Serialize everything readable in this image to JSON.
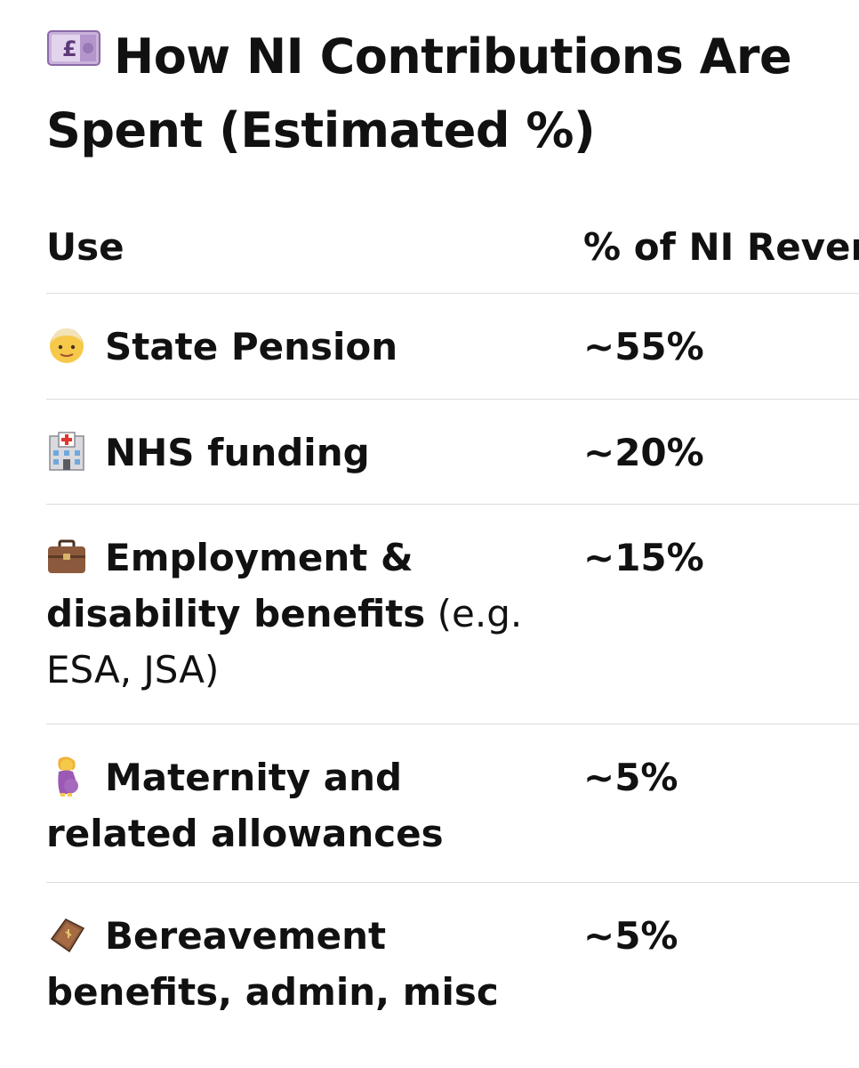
{
  "title": "How NI Contributions Are Spent (Estimated %)",
  "title_icon": "banknote-pound-icon",
  "table": {
    "headers": [
      "Use",
      "% of NI Revenue"
    ],
    "rows": [
      {
        "icon": "older-person-icon",
        "label": "State Pension",
        "note": "",
        "percent": "~55%"
      },
      {
        "icon": "hospital-icon",
        "label": "NHS funding",
        "note": "",
        "percent": "~20%"
      },
      {
        "icon": "briefcase-icon",
        "label": "Employment & disability benefits",
        "note": "(e.g. ESA, JSA)",
        "percent": "~15%"
      },
      {
        "icon": "pregnant-woman-icon",
        "label": "Maternity and related allowances",
        "note": "",
        "percent": "~5%"
      },
      {
        "icon": "coffin-icon",
        "label": "Bereavement benefits, admin, misc",
        "note": "",
        "percent": "~5%"
      }
    ]
  },
  "colors": {
    "text": "#111111",
    "divider": "#dcdcdc",
    "background": "#ffffff"
  }
}
